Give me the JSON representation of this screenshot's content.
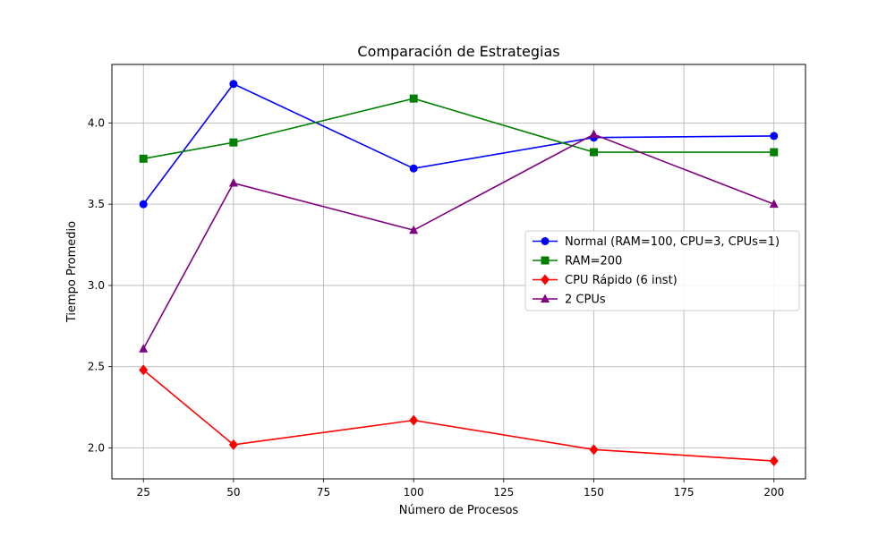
{
  "chart_data": {
    "type": "line",
    "title": "Comparación de Estrategias",
    "xlabel": "Número de Procesos",
    "ylabel": "Tiempo Promedio",
    "x": [
      25,
      50,
      100,
      150,
      200
    ],
    "xlim": [
      16.25,
      208.75
    ],
    "ylim": [
      1.81,
      4.36
    ],
    "xticks": [
      25,
      50,
      75,
      100,
      125,
      150,
      175,
      200
    ],
    "xtick_labels": [
      "25",
      "50",
      "75",
      "100",
      "125",
      "150",
      "175",
      "200"
    ],
    "yticks": [
      2.0,
      2.5,
      3.0,
      3.5,
      4.0
    ],
    "ytick_labels": [
      "2.0",
      "2.5",
      "3.0",
      "3.5",
      "4.0"
    ],
    "grid": true,
    "legend_position": "center-right",
    "series": [
      {
        "name": "Normal (RAM=100, CPU=3, CPUs=1)",
        "color": "#0000ff",
        "marker": "circle",
        "values": [
          3.5,
          4.24,
          3.72,
          3.91,
          3.92
        ]
      },
      {
        "name": "RAM=200",
        "color": "#008000",
        "marker": "square",
        "values": [
          3.78,
          3.88,
          4.15,
          3.82,
          3.82
        ]
      },
      {
        "name": "CPU Rápido (6 inst)",
        "color": "#ff0000",
        "marker": "diamond",
        "values": [
          2.48,
          2.02,
          2.17,
          1.99,
          1.92
        ]
      },
      {
        "name": "2 CPUs",
        "color": "#800080",
        "marker": "triangle",
        "values": [
          2.61,
          3.63,
          3.34,
          3.93,
          3.5
        ]
      }
    ]
  }
}
